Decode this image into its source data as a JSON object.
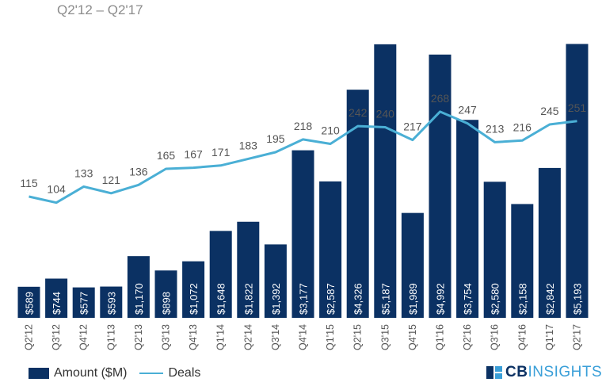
{
  "chart_data": {
    "type": "bar",
    "subtitle": "Q2'12 – Q2'17",
    "categories": [
      "Q2'12",
      "Q3'12",
      "Q4'12",
      "Q1'13",
      "Q2'13",
      "Q3'13",
      "Q4'13",
      "Q1'14",
      "Q2'14",
      "Q3'14",
      "Q4'14",
      "Q1'15",
      "Q2'15",
      "Q3'15",
      "Q4'15",
      "Q1'16",
      "Q2'16",
      "Q3'16",
      "Q4'16",
      "Q1'17",
      "Q2'17"
    ],
    "series": [
      {
        "name": "Amount ($M)",
        "type": "bar",
        "color": "#0b3163",
        "values": [
          589,
          744,
          577,
          593,
          1170,
          898,
          1072,
          1648,
          1822,
          1392,
          3177,
          2587,
          4326,
          5187,
          1989,
          4992,
          3754,
          2580,
          2158,
          2842,
          5193
        ],
        "labels": [
          "$589",
          "$744",
          "$577",
          "$593",
          "$1,170",
          "$898",
          "$1,072",
          "$1,648",
          "$1,822",
          "$1,392",
          "$3,177",
          "$2,587",
          "$4,326",
          "$5,187",
          "$1,989",
          "$4,992",
          "$3,754",
          "$2,580",
          "$2,158",
          "$2,842",
          "$5,193"
        ]
      },
      {
        "name": "Deals",
        "type": "line",
        "color": "#4aafd5",
        "values": [
          115,
          104,
          133,
          121,
          136,
          165,
          167,
          171,
          183,
          195,
          218,
          210,
          242,
          240,
          217,
          268,
          247,
          213,
          216,
          245,
          251
        ]
      }
    ],
    "legend": [
      "Amount ($M)",
      "Deals"
    ]
  },
  "branding": {
    "cb": "CB",
    "insights": "INSIGHTS"
  }
}
